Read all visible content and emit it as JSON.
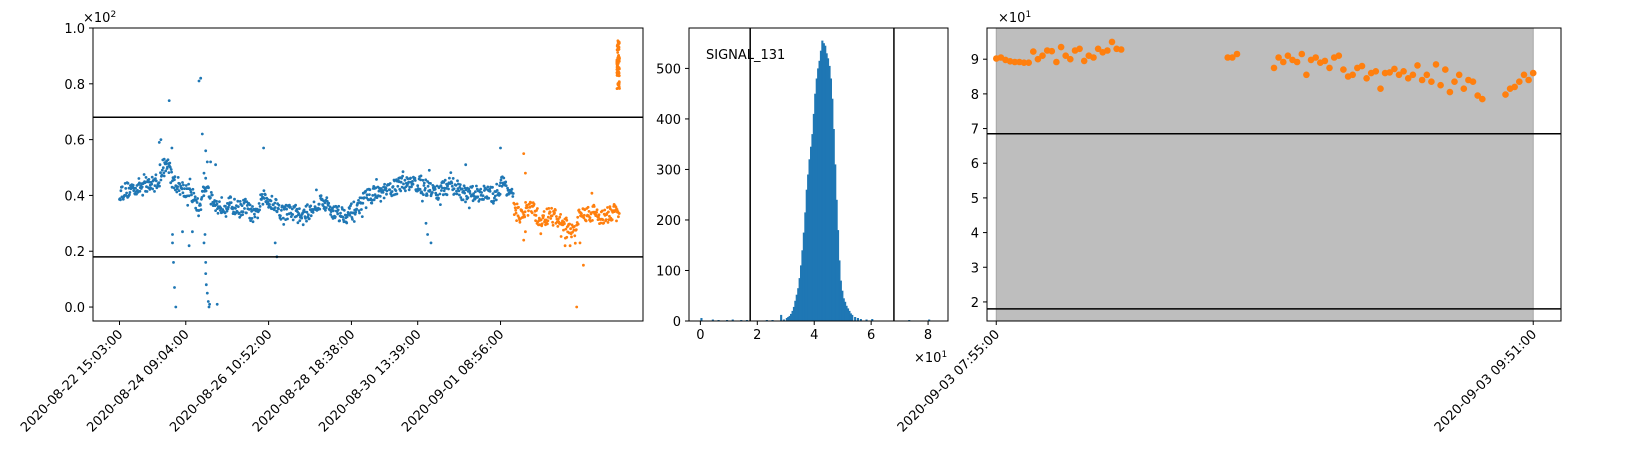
{
  "chart_data": [
    {
      "type": "scatter",
      "title": "",
      "xlabel": "",
      "ylabel": "",
      "y_multiplier": "×10",
      "y_multiplier_exp": "2",
      "ylim": [
        -0.05,
        1.0
      ],
      "y_ticks": [
        "0.0",
        "0.2",
        "0.4",
        "0.6",
        "0.8",
        "1.0"
      ],
      "x_tick_labels": [
        "2020-08-22 15:03:00",
        "2020-08-24 09:04:00",
        "2020-08-26 10:52:00",
        "2020-08-28 18:38:00",
        "2020-08-30 13:39:00",
        "2020-09-01 08:56:00"
      ],
      "hlines": [
        0.68,
        0.18
      ],
      "grid": false,
      "series": [
        {
          "color": "#1f77b4",
          "trend": [
            [
              0.0,
              0.41
            ],
            [
              0.5,
              0.43
            ],
            [
              1.0,
              0.44
            ],
            [
              1.25,
              0.46
            ],
            [
              1.45,
              0.52
            ],
            [
              1.6,
              0.45
            ],
            [
              2.0,
              0.42
            ],
            [
              2.2,
              0.4
            ],
            [
              2.4,
              0.35
            ],
            [
              2.6,
              0.44
            ],
            [
              2.9,
              0.36
            ],
            [
              3.3,
              0.37
            ],
            [
              3.6,
              0.35
            ],
            [
              3.8,
              0.36
            ],
            [
              4.1,
              0.32
            ],
            [
              4.3,
              0.39
            ],
            [
              4.6,
              0.38
            ],
            [
              4.9,
              0.34
            ],
            [
              5.3,
              0.34
            ],
            [
              5.5,
              0.32
            ],
            [
              6.1,
              0.38
            ],
            [
              6.5,
              0.34
            ],
            [
              6.9,
              0.33
            ],
            [
              7.2,
              0.36
            ],
            [
              7.5,
              0.4
            ],
            [
              8.0,
              0.41
            ],
            [
              8.3,
              0.43
            ],
            [
              8.8,
              0.45
            ],
            [
              9.2,
              0.43
            ],
            [
              9.6,
              0.41
            ],
            [
              10.0,
              0.44
            ],
            [
              10.5,
              0.4
            ],
            [
              10.9,
              0.41
            ],
            [
              11.3,
              0.4
            ],
            [
              11.6,
              0.45
            ],
            [
              11.9,
              0.38
            ]
          ],
          "outliers": [
            [
              1.2,
              0.59
            ],
            [
              1.25,
              0.6
            ],
            [
              1.35,
              0.53
            ],
            [
              1.5,
              0.74
            ],
            [
              1.58,
              0.57
            ],
            [
              1.6,
              0.26
            ],
            [
              1.6,
              0.23
            ],
            [
              1.63,
              0.16
            ],
            [
              1.66,
              0.07
            ],
            [
              1.7,
              0.0
            ],
            [
              1.9,
              0.27
            ],
            [
              2.1,
              0.22
            ],
            [
              2.2,
              0.27
            ],
            [
              2.4,
              0.81
            ],
            [
              2.45,
              0.82
            ],
            [
              2.5,
              0.62
            ],
            [
              2.55,
              0.48
            ],
            [
              2.55,
              0.23
            ],
            [
              2.58,
              0.26
            ],
            [
              2.6,
              0.16
            ],
            [
              2.6,
              0.12
            ],
            [
              2.62,
              0.08
            ],
            [
              2.65,
              0.05
            ],
            [
              2.68,
              0.02
            ],
            [
              2.7,
              0.0
            ],
            [
              2.72,
              0.01
            ],
            [
              2.6,
              0.56
            ],
            [
              2.65,
              0.52
            ],
            [
              2.75,
              0.52
            ],
            [
              2.9,
              0.51
            ],
            [
              2.95,
              0.01
            ],
            [
              4.35,
              0.57
            ],
            [
              4.7,
              0.23
            ],
            [
              4.75,
              0.18
            ],
            [
              9.1,
              0.47
            ],
            [
              9.25,
              0.3
            ],
            [
              9.3,
              0.26
            ],
            [
              9.4,
              0.23
            ],
            [
              9.35,
              0.49
            ],
            [
              10.45,
              0.51
            ],
            [
              11.5,
              0.57
            ]
          ]
        },
        {
          "color": "#ff7f0e",
          "trend": [
            [
              11.9,
              0.35
            ],
            [
              12.1,
              0.33
            ],
            [
              12.4,
              0.36
            ],
            [
              12.7,
              0.31
            ],
            [
              13.0,
              0.33
            ],
            [
              13.4,
              0.3
            ],
            [
              13.7,
              0.27
            ],
            [
              13.9,
              0.33
            ],
            [
              14.3,
              0.34
            ],
            [
              14.6,
              0.32
            ],
            [
              14.9,
              0.34
            ],
            [
              15.1,
              0.33
            ]
          ],
          "outliers": [
            [
              12.2,
              0.55
            ],
            [
              12.25,
              0.48
            ],
            [
              12.2,
              0.24
            ],
            [
              12.25,
              0.27
            ],
            [
              13.45,
              0.22
            ],
            [
              13.5,
              0.25
            ],
            [
              13.6,
              0.22
            ],
            [
              13.9,
              0.23
            ],
            [
              13.8,
              0.0
            ],
            [
              14.0,
              0.15
            ]
          ],
          "cluster": {
            "x": 15.05,
            "y_center": 0.87,
            "y_spread": 0.09
          }
        }
      ]
    },
    {
      "type": "bar",
      "subtype": "histogram",
      "title": "SIGNAL_131",
      "xlabel": "",
      "ylabel": "",
      "x_multiplier": "×10",
      "x_multiplier_exp": "1",
      "xlim": [
        -0.4,
        8.7
      ],
      "ylim": [
        0,
        580
      ],
      "x_ticks": [
        "0",
        "2",
        "4",
        "6",
        "8"
      ],
      "y_ticks": [
        "0",
        "100",
        "200",
        "300",
        "400",
        "500"
      ],
      "vlines": [
        1.75,
        6.8
      ],
      "color": "#1f77b4",
      "bin_width": 0.075,
      "bins": [
        [
          0.0,
          6
        ],
        [
          0.4,
          3
        ],
        [
          0.6,
          2
        ],
        [
          0.9,
          2
        ],
        [
          1.1,
          3
        ],
        [
          1.4,
          2
        ],
        [
          1.6,
          2
        ],
        [
          2.3,
          2
        ],
        [
          2.5,
          2
        ],
        [
          2.8,
          12
        ],
        [
          2.9,
          3
        ],
        [
          3.0,
          6
        ],
        [
          3.05,
          8
        ],
        [
          3.1,
          10
        ],
        [
          3.15,
          14
        ],
        [
          3.2,
          20
        ],
        [
          3.25,
          28
        ],
        [
          3.3,
          40
        ],
        [
          3.35,
          52
        ],
        [
          3.4,
          65
        ],
        [
          3.45,
          85
        ],
        [
          3.5,
          110
        ],
        [
          3.55,
          140
        ],
        [
          3.6,
          175
        ],
        [
          3.65,
          215
        ],
        [
          3.7,
          260
        ],
        [
          3.75,
          290
        ],
        [
          3.8,
          320
        ],
        [
          3.85,
          345
        ],
        [
          3.9,
          370
        ],
        [
          3.95,
          410
        ],
        [
          4.0,
          450
        ],
        [
          4.05,
          480
        ],
        [
          4.1,
          500
        ],
        [
          4.15,
          515
        ],
        [
          4.2,
          535
        ],
        [
          4.25,
          555
        ],
        [
          4.3,
          550
        ],
        [
          4.35,
          545
        ],
        [
          4.4,
          530
        ],
        [
          4.45,
          520
        ],
        [
          4.5,
          505
        ],
        [
          4.55,
          480
        ],
        [
          4.6,
          440
        ],
        [
          4.65,
          380
        ],
        [
          4.7,
          310
        ],
        [
          4.75,
          240
        ],
        [
          4.8,
          180
        ],
        [
          4.85,
          120
        ],
        [
          4.9,
          80
        ],
        [
          4.95,
          60
        ],
        [
          5.0,
          45
        ],
        [
          5.05,
          38
        ],
        [
          5.1,
          30
        ],
        [
          5.15,
          25
        ],
        [
          5.2,
          20
        ],
        [
          5.25,
          15
        ],
        [
          5.3,
          12
        ],
        [
          5.4,
          8
        ],
        [
          5.5,
          6
        ],
        [
          5.6,
          4
        ],
        [
          5.8,
          3
        ],
        [
          6.0,
          4
        ],
        [
          7.3,
          2
        ],
        [
          8.0,
          3
        ]
      ]
    },
    {
      "type": "scatter",
      "title": "",
      "xlabel": "",
      "ylabel": "",
      "y_multiplier": "×10",
      "y_multiplier_exp": "1",
      "ylim": [
        1.45,
        9.9
      ],
      "y_ticks": [
        "2",
        "3",
        "4",
        "5",
        "6",
        "7",
        "8",
        "9"
      ],
      "x_range_minutes": [
        0,
        116
      ],
      "x_tick_labels": [
        {
          "minute": 0,
          "label": "2020-09-03 07:55:00"
        },
        {
          "minute": 116,
          "label": "2020-09-03 09:51:00"
        }
      ],
      "xlim_minutes": [
        -2,
        122
      ],
      "hlines": [
        6.85,
        1.8
      ],
      "shaded_span_minutes": [
        0,
        116
      ],
      "shade_color": "#bebebe",
      "color": "#ff7f0e",
      "points": [
        [
          0,
          9.02
        ],
        [
          1,
          9.05
        ],
        [
          2,
          8.98
        ],
        [
          3,
          8.94
        ],
        [
          4,
          8.92
        ],
        [
          5,
          8.92
        ],
        [
          6,
          8.9
        ],
        [
          7,
          8.9
        ],
        [
          8,
          9.22
        ],
        [
          9,
          9.0
        ],
        [
          10,
          9.1
        ],
        [
          11,
          9.25
        ],
        [
          12,
          9.23
        ],
        [
          13,
          8.92
        ],
        [
          14,
          9.35
        ],
        [
          15,
          9.1
        ],
        [
          16,
          9.0
        ],
        [
          17,
          9.25
        ],
        [
          18,
          9.3
        ],
        [
          19,
          8.95
        ],
        [
          20,
          9.1
        ],
        [
          21,
          9.05
        ],
        [
          22,
          9.3
        ],
        [
          23,
          9.2
        ],
        [
          24,
          9.25
        ],
        [
          25,
          9.5
        ],
        [
          26,
          9.3
        ],
        [
          27,
          9.28
        ],
        [
          50,
          9.05
        ],
        [
          51,
          9.05
        ],
        [
          52,
          9.15
        ],
        [
          60,
          8.75
        ],
        [
          61,
          9.05
        ],
        [
          62,
          8.92
        ],
        [
          63,
          9.1
        ],
        [
          64,
          8.98
        ],
        [
          65,
          8.92
        ],
        [
          66,
          9.15
        ],
        [
          67,
          8.55
        ],
        [
          68,
          8.98
        ],
        [
          69,
          9.05
        ],
        [
          70,
          8.9
        ],
        [
          71,
          8.95
        ],
        [
          72,
          8.75
        ],
        [
          73,
          9.05
        ],
        [
          74,
          9.1
        ],
        [
          75,
          8.7
        ],
        [
          76,
          8.5
        ],
        [
          77,
          8.55
        ],
        [
          78,
          8.75
        ],
        [
          79,
          8.8
        ],
        [
          80,
          8.45
        ],
        [
          81,
          8.6
        ],
        [
          82,
          8.65
        ],
        [
          83,
          8.15
        ],
        [
          84,
          8.6
        ],
        [
          85,
          8.62
        ],
        [
          86,
          8.72
        ],
        [
          87,
          8.55
        ],
        [
          88,
          8.65
        ],
        [
          89,
          8.45
        ],
        [
          90,
          8.55
        ],
        [
          91,
          8.82
        ],
        [
          92,
          8.4
        ],
        [
          93,
          8.55
        ],
        [
          94,
          8.35
        ],
        [
          95,
          8.85
        ],
        [
          96,
          8.25
        ],
        [
          97,
          8.7
        ],
        [
          98,
          8.05
        ],
        [
          99,
          8.35
        ],
        [
          100,
          8.55
        ],
        [
          101,
          8.15
        ],
        [
          102,
          8.4
        ],
        [
          103,
          8.35
        ],
        [
          104,
          7.95
        ],
        [
          105,
          7.85
        ],
        [
          110,
          7.98
        ],
        [
          111,
          8.15
        ],
        [
          112,
          8.2
        ],
        [
          113,
          8.35
        ],
        [
          114,
          8.55
        ],
        [
          115,
          8.4
        ],
        [
          116,
          8.6
        ]
      ]
    }
  ]
}
